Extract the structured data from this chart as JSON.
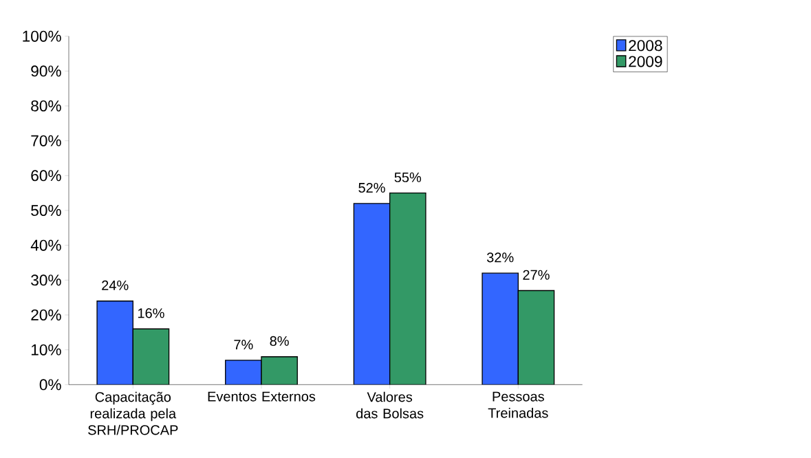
{
  "chart_data": {
    "type": "bar",
    "categories": [
      "Capacitação realizada pela SRH/PROCAP",
      "Eventos Externos",
      "Valores das Bolsas",
      "Pessoas Treinadas"
    ],
    "series": [
      {
        "name": "2008",
        "color": "#3366ff",
        "values": [
          24,
          7,
          52,
          32
        ],
        "value_labels": [
          "24%",
          "7%",
          "52%",
          "32%"
        ]
      },
      {
        "name": "2009",
        "color": "#339966",
        "values": [
          16,
          8,
          55,
          27
        ],
        "value_labels": [
          "16%",
          "8%",
          "55%",
          "27%"
        ]
      }
    ],
    "ylim": [
      0,
      100
    ],
    "yticks": [
      {
        "value": 0,
        "label": "0%"
      },
      {
        "value": 10,
        "label": "10%"
      },
      {
        "value": 20,
        "label": "20%"
      },
      {
        "value": 30,
        "label": "30%"
      },
      {
        "value": 40,
        "label": "40%"
      },
      {
        "value": 50,
        "label": "50%"
      },
      {
        "value": 60,
        "label": "60%"
      },
      {
        "value": 70,
        "label": "70%"
      },
      {
        "value": 80,
        "label": "80%"
      },
      {
        "value": 90,
        "label": "90%"
      },
      {
        "value": 100,
        "label": "100%"
      }
    ],
    "legend": "top right"
  }
}
